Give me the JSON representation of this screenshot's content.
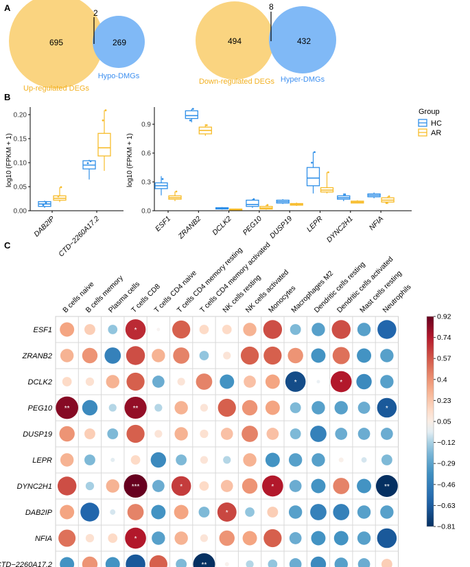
{
  "panels": {
    "a": "A",
    "b": "B",
    "c": "C"
  },
  "colors": {
    "deg": "#fad480",
    "dmg": "#80b9f6",
    "deg_text": "#f2b020",
    "dmg_text": "#3d8ff0",
    "hc": "#2f8fe8",
    "ar": "#f7bc2b"
  },
  "chart_data": [
    {
      "type": "venn",
      "panel": "A-left",
      "sets": [
        {
          "label": "Up-regulated DEGs",
          "only": "695"
        },
        {
          "label": "Hypo-DMGs",
          "only": "269"
        }
      ],
      "overlap": "2"
    },
    {
      "type": "venn",
      "panel": "A-right",
      "sets": [
        {
          "label": "Down-regulated DEGs",
          "only": "494"
        },
        {
          "label": "Hyper-DMGs",
          "only": "432"
        }
      ],
      "overlap": "8"
    },
    {
      "type": "box",
      "panel": "B-left",
      "ylabel": "log10 (FPKM + 1)",
      "ylim": [
        0,
        0.21
      ],
      "yticks": [
        "0.00",
        "0.05",
        "0.10",
        "0.15",
        "0.20"
      ],
      "categories": [
        "DAB2IP",
        "CTD−2260A17.2"
      ],
      "series": [
        {
          "name": "HC",
          "boxes": [
            {
              "q1": 0.009,
              "median": 0.014,
              "q3": 0.019,
              "lo": 0.006,
              "hi": 0.021,
              "points": [
                0.017,
                0.012
              ]
            },
            {
              "q1": 0.087,
              "median": 0.095,
              "q3": 0.104,
              "lo": 0.065,
              "hi": 0.106,
              "points": [
                0.103,
                0.099
              ]
            }
          ]
        },
        {
          "name": "AR",
          "boxes": [
            {
              "q1": 0.022,
              "median": 0.026,
              "q3": 0.031,
              "lo": 0.018,
              "hi": 0.049,
              "points": [
                0.049,
                0.03
              ]
            },
            {
              "q1": 0.114,
              "median": 0.131,
              "q3": 0.161,
              "lo": 0.083,
              "hi": 0.209,
              "points": [
                0.209,
                0.188
              ]
            }
          ]
        }
      ]
    },
    {
      "type": "box",
      "panel": "B-right",
      "ylabel": "log10 (FPKM + 1)",
      "ylim": [
        0,
        1.05
      ],
      "yticks": [
        "0.0",
        "0.3",
        "0.6",
        "0.9"
      ],
      "categories": [
        "ESF1",
        "ZRANB2",
        "DCLK2",
        "PEG10",
        "DUSP19",
        "LEPR",
        "DYNC2H1",
        "NFIA"
      ],
      "legend": {
        "title": "Group",
        "items": [
          "HC",
          "AR"
        ]
      },
      "series": [
        {
          "name": "HC",
          "boxes": [
            {
              "q1": 0.23,
              "median": 0.26,
              "q3": 0.29,
              "lo": 0.16,
              "hi": 0.36,
              "points": [
                0.33
              ]
            },
            {
              "q1": 0.96,
              "median": 0.99,
              "q3": 1.04,
              "lo": 0.92,
              "hi": 1.06,
              "points": [
                1.06,
                0.94
              ]
            },
            {
              "q1": 0.018,
              "median": 0.025,
              "q3": 0.032,
              "lo": 0.012,
              "hi": 0.038,
              "points": []
            },
            {
              "q1": 0.045,
              "median": 0.065,
              "q3": 0.11,
              "lo": 0.03,
              "hi": 0.12,
              "points": [
                0.12
              ]
            },
            {
              "q1": 0.08,
              "median": 0.095,
              "q3": 0.11,
              "lo": 0.07,
              "hi": 0.12,
              "points": []
            },
            {
              "q1": 0.26,
              "median": 0.34,
              "q3": 0.45,
              "lo": 0.18,
              "hi": 0.61,
              "points": [
                0.61,
                0.5
              ]
            },
            {
              "q1": 0.12,
              "median": 0.135,
              "q3": 0.155,
              "lo": 0.1,
              "hi": 0.18,
              "points": [
                0.17
              ]
            },
            {
              "q1": 0.145,
              "median": 0.16,
              "q3": 0.175,
              "lo": 0.13,
              "hi": 0.19,
              "points": []
            }
          ]
        },
        {
          "name": "AR",
          "boxes": [
            {
              "q1": 0.12,
              "median": 0.135,
              "q3": 0.155,
              "lo": 0.1,
              "hi": 0.2,
              "points": [
                0.2
              ]
            },
            {
              "q1": 0.8,
              "median": 0.835,
              "q3": 0.87,
              "lo": 0.78,
              "hi": 0.9,
              "points": [
                0.89
              ]
            },
            {
              "q1": 0.008,
              "median": 0.012,
              "q3": 0.018,
              "lo": 0.005,
              "hi": 0.022,
              "points": []
            },
            {
              "q1": 0.018,
              "median": 0.028,
              "q3": 0.045,
              "lo": 0.01,
              "hi": 0.06,
              "points": [
                0.06
              ]
            },
            {
              "q1": 0.058,
              "median": 0.065,
              "q3": 0.075,
              "lo": 0.05,
              "hi": 0.085,
              "points": []
            },
            {
              "q1": 0.195,
              "median": 0.215,
              "q3": 0.24,
              "lo": 0.18,
              "hi": 0.4,
              "points": [
                0.4
              ]
            },
            {
              "q1": 0.08,
              "median": 0.09,
              "q3": 0.1,
              "lo": 0.075,
              "hi": 0.11,
              "points": []
            },
            {
              "q1": 0.09,
              "median": 0.11,
              "q3": 0.135,
              "lo": 0.07,
              "hi": 0.15,
              "points": [
                0.15,
                0.08
              ]
            }
          ]
        }
      ]
    },
    {
      "type": "heatmap",
      "panel": "C",
      "columns": [
        "B cells naive",
        "B cells memory",
        "Plasma cells",
        "T cells CD8",
        "T cells CD4 naive",
        "T cells CD4 memory resting",
        "T cells CD4 memory activated",
        "NK cells resting",
        "NK cells activated",
        "Monocytes",
        "Macrophages M2",
        "Dendritic cells resting",
        "Dendritic cells activated",
        "Mast cells resting",
        "Neutrophils"
      ],
      "rows": [
        "ESF1",
        "ZRANB2",
        "DCLK2",
        "PEG10",
        "DUSP19",
        "LEPR",
        "DYNC2H1",
        "DAB2IP",
        "NFIA",
        "CTD−2260A17.2"
      ],
      "values": [
        [
          0.35,
          0.2,
          -0.15,
          0.7,
          0.02,
          0.55,
          0.15,
          0.15,
          0.3,
          0.6,
          -0.2,
          -0.3,
          0.6,
          -0.3,
          -0.6
        ],
        [
          0.3,
          0.4,
          -0.45,
          0.6,
          0.3,
          0.45,
          -0.15,
          0.1,
          0.55,
          0.55,
          0.4,
          -0.35,
          0.5,
          -0.35,
          -0.3
        ],
        [
          0.15,
          0.12,
          0.3,
          0.55,
          -0.25,
          0.1,
          0.45,
          -0.35,
          0.25,
          0.35,
          -0.7,
          -0.02,
          0.75,
          -0.4,
          -0.3
        ],
        [
          0.85,
          -0.4,
          -0.1,
          0.82,
          -0.1,
          0.3,
          0.1,
          0.55,
          0.4,
          0.35,
          -0.2,
          -0.3,
          -0.3,
          -0.25,
          -0.65
        ],
        [
          0.4,
          0.2,
          -0.2,
          0.55,
          0.1,
          0.3,
          0.12,
          0.25,
          0.45,
          0.25,
          -0.2,
          -0.45,
          -0.25,
          -0.25,
          -0.25
        ],
        [
          0.3,
          -0.2,
          -0.03,
          0.15,
          -0.4,
          -0.2,
          0.1,
          -0.1,
          0.3,
          -0.35,
          -0.3,
          -0.3,
          0.04,
          -0.05,
          -0.2
        ],
        [
          0.6,
          -0.12,
          0.3,
          0.92,
          -0.25,
          0.65,
          0.15,
          0.25,
          0.4,
          0.75,
          -0.25,
          -0.35,
          0.45,
          -0.35,
          -0.81
        ],
        [
          0.35,
          -0.6,
          -0.05,
          0.45,
          -0.35,
          0.35,
          -0.2,
          0.62,
          -0.15,
          0.2,
          -0.3,
          -0.45,
          -0.45,
          -0.3,
          -0.3
        ],
        [
          0.5,
          0.12,
          0.15,
          0.75,
          -0.3,
          0.3,
          0.1,
          0.4,
          0.35,
          0.55,
          -0.25,
          -0.35,
          -0.35,
          -0.3,
          -0.65
        ],
        [
          -0.35,
          0.4,
          -0.35,
          -0.65,
          0.55,
          -0.2,
          -0.81,
          0.03,
          -0.1,
          -0.15,
          -0.25,
          -0.4,
          -0.3,
          -0.25,
          0.2
        ]
      ],
      "stars": [
        {
          "r": 0,
          "c": 3,
          "text": "*"
        },
        {
          "r": 2,
          "c": 10,
          "text": "*"
        },
        {
          "r": 2,
          "c": 12,
          "text": "*"
        },
        {
          "r": 3,
          "c": 0,
          "text": "**"
        },
        {
          "r": 3,
          "c": 3,
          "text": "**"
        },
        {
          "r": 3,
          "c": 14,
          "text": "*"
        },
        {
          "r": 6,
          "c": 3,
          "text": "***"
        },
        {
          "r": 6,
          "c": 5,
          "text": "*"
        },
        {
          "r": 6,
          "c": 9,
          "text": "*"
        },
        {
          "r": 6,
          "c": 14,
          "text": "**"
        },
        {
          "r": 7,
          "c": 7,
          "text": "*"
        },
        {
          "r": 8,
          "c": 3,
          "text": "*"
        },
        {
          "r": 9,
          "c": 6,
          "text": "**"
        }
      ],
      "colorbar": {
        "ticks": [
          "0.92",
          "0.74",
          "0.57",
          "0.4",
          "0.23",
          "0.05",
          "−0.12",
          "−0.29",
          "−0.46",
          "−0.63",
          "−0.81"
        ],
        "min": -0.81,
        "max": 0.92
      }
    }
  ]
}
